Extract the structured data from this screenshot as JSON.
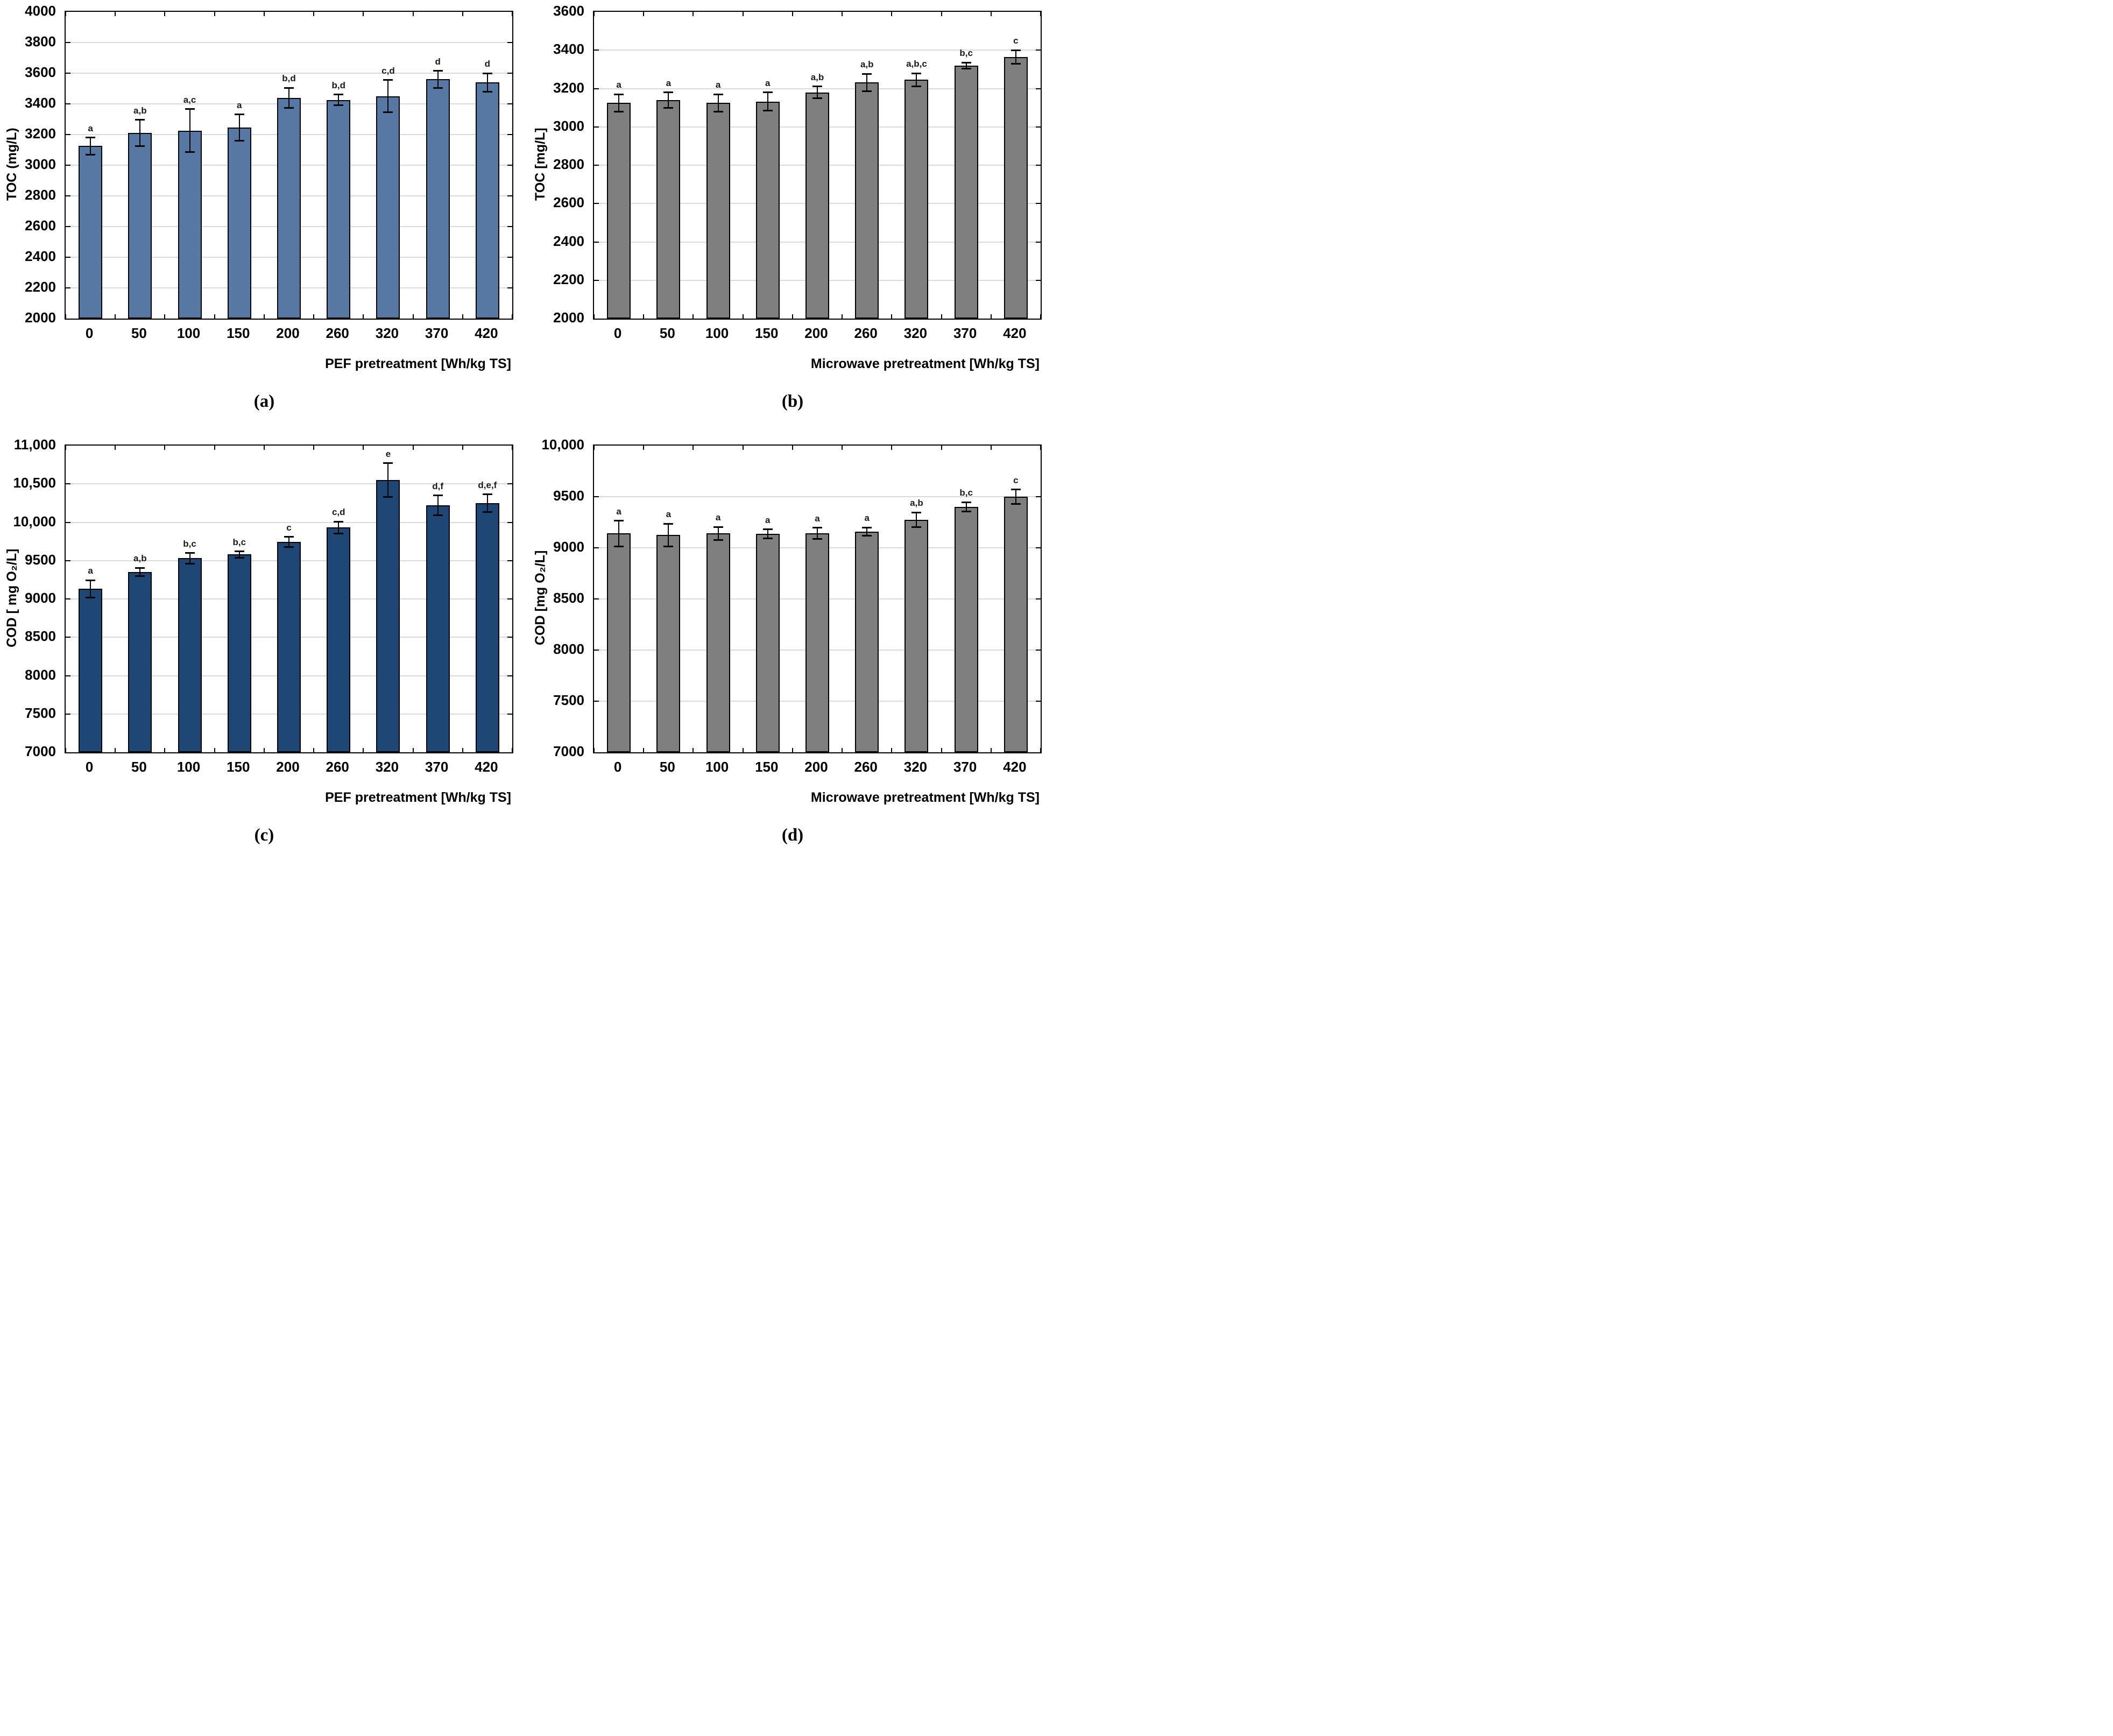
{
  "styles": {
    "grid_color": "#d9d9d9",
    "frame_color": "#000000",
    "error_color": "#000000",
    "sig_label_color": "#1a1a1a",
    "pef_toc_bar_color": "#5878a4",
    "microwave_bar_color": "#7f7f7f",
    "pef_cod_bar_color": "#1e4776"
  },
  "chart_data": [
    {
      "id": "a",
      "type": "bar",
      "panel_label": "(a)",
      "xlabel": "PEF pretreatment [Wh/kg TS]",
      "ylabel": "TOC (mg/L)",
      "categories": [
        "0",
        "50",
        "100",
        "150",
        "200",
        "260",
        "320",
        "370",
        "420"
      ],
      "values": [
        3125,
        3210,
        3225,
        3245,
        3440,
        3425,
        3450,
        3560,
        3540
      ],
      "errors": [
        55,
        85,
        140,
        85,
        65,
        35,
        105,
        55,
        60
      ],
      "sig_labels": [
        "a",
        "a,b",
        "a,c",
        "a",
        "b,d",
        "b,d",
        "c,d",
        "d",
        "d"
      ],
      "ylim": [
        2000,
        4000
      ],
      "ytick_values": [
        2000,
        2200,
        2400,
        2600,
        2800,
        3000,
        3200,
        3400,
        3600,
        3800,
        4000
      ],
      "ytick_labels": [
        "2000",
        "2200",
        "2400",
        "2600",
        "2800",
        "3000",
        "3200",
        "3400",
        "3600",
        "3800",
        "4000"
      ],
      "bar_color": "#5878a4",
      "grid": true,
      "legend": "none"
    },
    {
      "id": "b",
      "type": "bar",
      "panel_label": "(b)",
      "xlabel": "Microwave pretreatment [Wh/kg TS]",
      "ylabel": "TOC [mg/L]",
      "categories": [
        "0",
        "50",
        "100",
        "150",
        "200",
        "260",
        "320",
        "370",
        "420"
      ],
      "values": [
        3125,
        3140,
        3125,
        3132,
        3180,
        3232,
        3245,
        3320,
        3365
      ],
      "errors": [
        45,
        40,
        45,
        48,
        30,
        45,
        35,
        15,
        35
      ],
      "sig_labels": [
        "a",
        "a",
        "a",
        "a",
        "a,b",
        "a,b",
        "a,b,c",
        "b,c",
        "c"
      ],
      "ylim": [
        2000,
        3600
      ],
      "ytick_values": [
        2000,
        2200,
        2400,
        2600,
        2800,
        3000,
        3200,
        3400,
        3600
      ],
      "ytick_labels": [
        "2000",
        "2200",
        "2400",
        "2600",
        "2800",
        "3000",
        "3200",
        "3400",
        "3600"
      ],
      "bar_color": "#7f7f7f",
      "grid": true,
      "legend": "none"
    },
    {
      "id": "c",
      "type": "bar",
      "panel_label": "(c)",
      "xlabel": "PEF pretreatment [Wh/kg TS]",
      "ylabel": "COD [ mg O₂/L]",
      "categories": [
        "0",
        "50",
        "100",
        "150",
        "200",
        "260",
        "320",
        "370",
        "420"
      ],
      "values": [
        9130,
        9350,
        9530,
        9580,
        9745,
        9930,
        10550,
        10220,
        10250
      ],
      "errors": [
        115,
        55,
        70,
        40,
        65,
        80,
        220,
        130,
        115
      ],
      "sig_labels": [
        "a",
        "a,b",
        "b,c",
        "b,c",
        "c",
        "c,d",
        "e",
        "d,f",
        "d,e,f"
      ],
      "ylim": [
        7000,
        11000
      ],
      "ytick_values": [
        7000,
        7500,
        8000,
        8500,
        9000,
        9500,
        10000,
        10500,
        11000
      ],
      "ytick_labels": [
        "7000",
        "7500",
        "8000",
        "8500",
        "9000",
        "9500",
        "10,000",
        "10,500",
        "11,000"
      ],
      "bar_color": "#1e4776",
      "grid": true,
      "legend": "none"
    },
    {
      "id": "d",
      "type": "bar",
      "panel_label": "(d)",
      "xlabel": "Microwave pretreatment [Wh/kg TS]",
      "ylabel": "COD [mg O₂/L]",
      "categories": [
        "0",
        "50",
        "100",
        "150",
        "200",
        "260",
        "320",
        "370",
        "420"
      ],
      "values": [
        9140,
        9125,
        9140,
        9135,
        9140,
        9160,
        9275,
        9400,
        9500
      ],
      "errors": [
        125,
        110,
        65,
        45,
        55,
        40,
        70,
        45,
        70
      ],
      "sig_labels": [
        "a",
        "a",
        "a",
        "a",
        "a",
        "a",
        "a,b",
        "b,c",
        "c"
      ],
      "ylim": [
        7000,
        10000
      ],
      "ytick_values": [
        7000,
        7500,
        8000,
        8500,
        9000,
        9500,
        10000
      ],
      "ytick_labels": [
        "7000",
        "7500",
        "8000",
        "8500",
        "9000",
        "9500",
        "10,000"
      ],
      "bar_color": "#7f7f7f",
      "grid": true,
      "legend": "none"
    }
  ]
}
